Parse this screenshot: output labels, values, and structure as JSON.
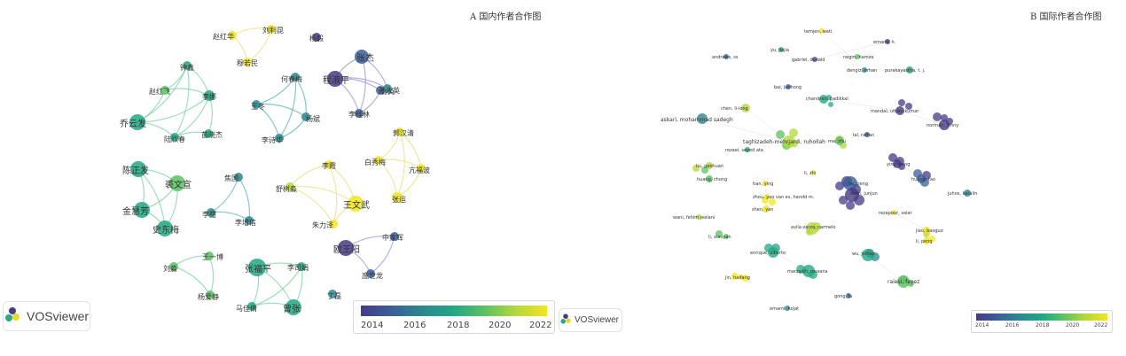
{
  "panel_a": {
    "title": "A   国内作者合作图",
    "nodes": [
      "赵红华",
      "刘利昆",
      "穆若民",
      "杨毅",
      "程淑平",
      "张杰",
      "鲁英",
      "孙永英",
      "李桂林",
      "何春梅",
      "王冬",
      "杨斌",
      "李诗华",
      "钟鑫",
      "赵红飞",
      "李娜",
      "乔云发",
      "陆欣春",
      "苗晓杰",
      "陈正发",
      "裘文宣",
      "金慧芳",
      "史东梅",
      "焦国",
      "李甜",
      "李增信",
      "舒树淼",
      "李霞",
      "朱力泽",
      "王文武",
      "郭汉清",
      "白秀梅",
      "亢福波",
      "张运",
      "欧王阳",
      "中家辉",
      "庞世龙",
      "刘淼",
      "王一博",
      "杨爱静",
      "张福平",
      "李司娟",
      "马佳倩",
      "曾张",
      "丁磊"
    ],
    "legend_ticks": [
      "2014",
      "2016",
      "2018",
      "2020",
      "2022"
    ],
    "logo_text": "VOSviewer"
  },
  "panel_b": {
    "title": "B   国际作者合作图",
    "nodes": [
      "temjen, wati",
      "emami, h.",
      "yu, jiajia",
      "andrews, ss",
      "gabriel, donald",
      "negm, hamza",
      "dengiz, orhan",
      "purakayastha, t. j.",
      "bai, junhong",
      "chandran, padikkal",
      "chen, li-long",
      "mandal, uttam kumar",
      "askari, mohammad sadegh",
      "norman, jenny",
      "lal, rattan",
      "taghizadeh-mehrjardi, ruhollah",
      "rezaei, seyed ata",
      "ma, zhu",
      "liu, gaohuan",
      "li, zhi",
      "ying, peng",
      "huang, chong",
      "he, peng",
      "huang, tao",
      "tian, ying",
      "zhou, yao van es, harold m.",
      "chen, junjun",
      "juhos, katalin",
      "shen, yan",
      "wani, fehim jeelani",
      "rezapour, salar",
      "avila-zarza, carmelo",
      "li, xiaoyan",
      "jiao, baoguo",
      "li, peng",
      "enrique, alberto",
      "wu, jinhao",
      "marzaioli, rossana",
      "jin, haifang",
      "raiesi, fayez",
      "gong, lu",
      "emami, hojat"
    ],
    "legend_ticks": [
      "2014",
      "2016",
      "2018",
      "2020",
      "2022"
    ]
  },
  "colors": {
    "viridis": [
      "#453b87",
      "#3a5f99",
      "#2a8a8d",
      "#22a884",
      "#5bc262",
      "#b4d83b",
      "#f2e51f"
    ],
    "green_link": "#7fd3a6",
    "purple_link": "#9f94d6",
    "yellow_link": "#e8e27a",
    "teal_link": "#5bb8b3"
  }
}
